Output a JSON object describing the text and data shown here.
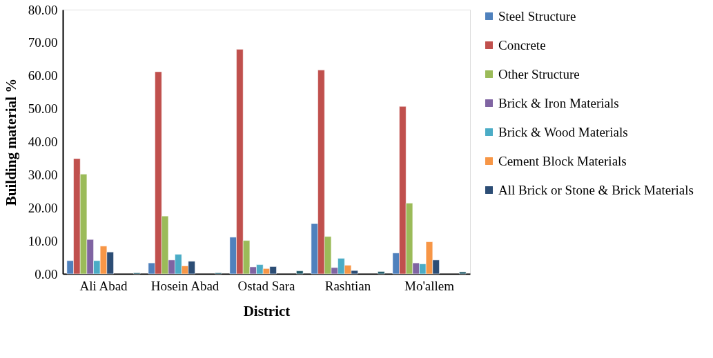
{
  "chart_data": {
    "type": "bar",
    "xlabel": "District",
    "ylabel": "Building material %",
    "categories": [
      "Ali Abad",
      "Hosein Abad",
      "Ostad Sara",
      "Rashtian",
      "Mo'allem"
    ],
    "series": [
      {
        "name": "Steel Structure",
        "color": "#4f81bd",
        "values": [
          4.0,
          3.3,
          11.1,
          15.2,
          6.3
        ]
      },
      {
        "name": "Concrete",
        "color": "#c0504d",
        "values": [
          34.9,
          61.2,
          68.0,
          61.7,
          50.7
        ]
      },
      {
        "name": "Other Structure",
        "color": "#9bbb59",
        "values": [
          30.2,
          17.5,
          10.1,
          11.3,
          21.4
        ]
      },
      {
        "name": "Brick & Iron Materials",
        "color": "#8064a2",
        "values": [
          10.4,
          4.2,
          2.1,
          1.9,
          3.3
        ]
      },
      {
        "name": "Brick & Wood Materials",
        "color": "#4bacc6",
        "values": [
          4.0,
          5.9,
          2.8,
          4.7,
          3.0
        ]
      },
      {
        "name": "Cement Block Materials",
        "color": "#f79646",
        "values": [
          8.4,
          2.4,
          1.6,
          2.6,
          9.7
        ]
      },
      {
        "name": "All Brick or Stone & Brick Materials",
        "color": "#2c4d75",
        "values": [
          6.6,
          3.8,
          2.2,
          1.0,
          4.2
        ]
      },
      {
        "values": [
          null,
          null,
          null,
          null,
          null
        ]
      },
      {
        "values": [
          null,
          null,
          null,
          null,
          null
        ]
      },
      {
        "values": [
          null,
          null,
          null,
          null,
          null
        ]
      },
      {
        "color": "#215968",
        "values": [
          0.3,
          0.3,
          0.9,
          0.7,
          0.6
        ]
      }
    ],
    "ylim": [
      0,
      80
    ],
    "yticks": [
      {
        "value": 0,
        "label": "0.00"
      },
      {
        "value": 10,
        "label": "10.00"
      },
      {
        "value": 20,
        "label": "20.00"
      },
      {
        "value": 30,
        "label": "30.00"
      },
      {
        "value": 40,
        "label": "40.00"
      },
      {
        "value": 50,
        "label": "50.00"
      },
      {
        "value": 60,
        "label": "60.00"
      },
      {
        "value": 70,
        "label": "70.00"
      },
      {
        "value": 80,
        "label": "80.00"
      }
    ],
    "grid": false,
    "legend": "right"
  }
}
